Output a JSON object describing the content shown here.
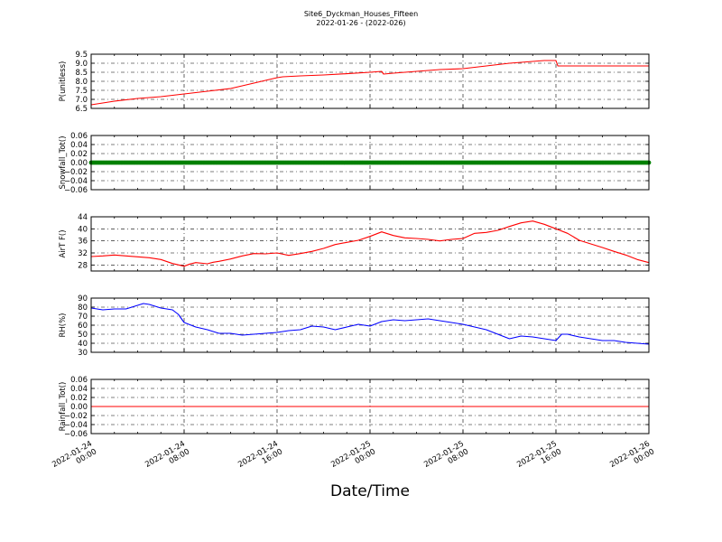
{
  "figure": {
    "title": "Site6_Dyckman_Houses_Fifteen",
    "subtitle": "2022-01-26 - (2022-026)",
    "xlabel": "Date/Time"
  },
  "chart_data": [
    {
      "type": "line",
      "ylabel": "P(unitless)",
      "ylim": [
        6.5,
        9.5
      ],
      "yticks": [
        "6.5",
        "7.0",
        "7.5",
        "8.0",
        "8.5",
        "9.0",
        "9.5"
      ],
      "xlim": [
        "2022-01-24 00:00",
        "2022-01-26 00:00"
      ],
      "grid": true,
      "series": [
        {
          "color": "#ff0000",
          "x": [
            "2022-01-24 00:00",
            "2022-01-24 02:00",
            "2022-01-24 04:00",
            "2022-01-24 06:00",
            "2022-01-24 08:00",
            "2022-01-24 10:00",
            "2022-01-24 12:00",
            "2022-01-24 13:00",
            "2022-01-24 14:00",
            "2022-01-24 15:00",
            "2022-01-24 16:00",
            "2022-01-24 16:30",
            "2022-01-24 18:00",
            "2022-01-24 20:00",
            "2022-01-24 22:00",
            "2022-01-25 00:00",
            "2022-01-25 01:00",
            "2022-01-25 01:10",
            "2022-01-25 02:00",
            "2022-01-25 04:00",
            "2022-01-25 06:00",
            "2022-01-25 08:00",
            "2022-01-25 10:00",
            "2022-01-25 12:00",
            "2022-01-25 14:00",
            "2022-01-25 15:00",
            "2022-01-25 16:00",
            "2022-01-25 16:10",
            "2022-01-25 18:00",
            "2022-01-25 20:00",
            "2022-01-25 22:00",
            "2022-01-26 00:00"
          ],
          "y": [
            6.7,
            6.9,
            7.05,
            7.15,
            7.3,
            7.45,
            7.6,
            7.75,
            7.9,
            8.05,
            8.2,
            8.25,
            8.3,
            8.35,
            8.42,
            8.5,
            8.55,
            8.4,
            8.45,
            8.55,
            8.65,
            8.7,
            8.85,
            9.0,
            9.1,
            9.15,
            9.15,
            8.85,
            8.85,
            8.85,
            8.85,
            8.85
          ]
        }
      ]
    },
    {
      "type": "scatter",
      "ylabel": "Snowfall_Tot()",
      "ylim": [
        -0.06,
        0.06
      ],
      "yticks": [
        "−0.06",
        "−0.04",
        "−0.02",
        "0.00",
        "0.02",
        "0.04",
        "0.06"
      ],
      "xlim": [
        "2022-01-24 00:00",
        "2022-01-26 00:00"
      ],
      "grid": true,
      "series": [
        {
          "color": "#008000",
          "x": [
            "2022-01-24 00:00",
            "2022-01-26 00:00"
          ],
          "y": [
            0.0,
            0.0
          ]
        }
      ]
    },
    {
      "type": "line",
      "ylabel": "AirT F()",
      "ylim": [
        26,
        44
      ],
      "yticks": [
        "28",
        "32",
        "36",
        "40",
        "44"
      ],
      "xlim": [
        "2022-01-24 00:00",
        "2022-01-26 00:00"
      ],
      "grid": true,
      "series": [
        {
          "color": "#ff0000",
          "x": [
            "2022-01-24 00:00",
            "2022-01-24 01:00",
            "2022-01-24 02:00",
            "2022-01-24 03:00",
            "2022-01-24 04:00",
            "2022-01-24 05:00",
            "2022-01-24 06:00",
            "2022-01-24 07:00",
            "2022-01-24 08:00",
            "2022-01-24 08:30",
            "2022-01-24 09:00",
            "2022-01-24 10:00",
            "2022-01-24 10:30",
            "2022-01-24 11:00",
            "2022-01-24 12:00",
            "2022-01-24 13:00",
            "2022-01-24 14:00",
            "2022-01-24 15:00",
            "2022-01-24 16:00",
            "2022-01-24 17:00",
            "2022-01-24 18:00",
            "2022-01-24 19:00",
            "2022-01-24 20:00",
            "2022-01-24 21:00",
            "2022-01-24 22:00",
            "2022-01-24 23:00",
            "2022-01-25 00:00",
            "2022-01-25 01:00",
            "2022-01-25 02:00",
            "2022-01-25 03:00",
            "2022-01-25 04:00",
            "2022-01-25 05:00",
            "2022-01-25 06:00",
            "2022-01-25 07:00",
            "2022-01-25 08:00",
            "2022-01-25 09:00",
            "2022-01-25 10:00",
            "2022-01-25 11:00",
            "2022-01-25 12:00",
            "2022-01-25 13:00",
            "2022-01-25 14:00",
            "2022-01-25 15:00",
            "2022-01-25 16:00",
            "2022-01-25 17:00",
            "2022-01-25 18:00",
            "2022-01-25 19:00",
            "2022-01-25 20:00",
            "2022-01-25 21:00",
            "2022-01-25 22:00",
            "2022-01-25 23:00",
            "2022-01-26 00:00"
          ],
          "y": [
            30.8,
            31.0,
            31.3,
            31.0,
            30.7,
            30.4,
            29.8,
            28.5,
            27.6,
            28.3,
            28.8,
            28.4,
            28.9,
            29.2,
            30.0,
            31.0,
            31.8,
            31.7,
            32.0,
            31.2,
            31.8,
            32.5,
            33.5,
            34.8,
            35.5,
            36.2,
            37.5,
            39.0,
            37.8,
            37.0,
            36.8,
            36.5,
            36.0,
            36.5,
            36.8,
            38.5,
            38.8,
            39.5,
            40.8,
            42.0,
            42.6,
            41.5,
            40.0,
            38.5,
            36.2,
            35.0,
            33.8,
            32.5,
            31.3,
            29.8,
            28.8
          ]
        }
      ]
    },
    {
      "type": "line",
      "ylabel": "RH(%)",
      "ylim": [
        30,
        90
      ],
      "yticks": [
        "30",
        "40",
        "50",
        "60",
        "70",
        "80",
        "90"
      ],
      "xlim": [
        "2022-01-24 00:00",
        "2022-01-26 00:00"
      ],
      "grid": true,
      "series": [
        {
          "color": "#0000ff",
          "x": [
            "2022-01-24 00:00",
            "2022-01-24 01:00",
            "2022-01-24 02:00",
            "2022-01-24 03:00",
            "2022-01-24 04:00",
            "2022-01-24 04:30",
            "2022-01-24 05:00",
            "2022-01-24 06:00",
            "2022-01-24 07:00",
            "2022-01-24 07:30",
            "2022-01-24 08:00",
            "2022-01-24 09:00",
            "2022-01-24 10:00",
            "2022-01-24 11:00",
            "2022-01-24 12:00",
            "2022-01-24 13:00",
            "2022-01-24 14:00",
            "2022-01-24 15:00",
            "2022-01-24 16:00",
            "2022-01-24 17:00",
            "2022-01-24 18:00",
            "2022-01-24 19:00",
            "2022-01-24 20:00",
            "2022-01-24 21:00",
            "2022-01-24 22:00",
            "2022-01-24 23:00",
            "2022-01-25 00:00",
            "2022-01-25 01:00",
            "2022-01-25 02:00",
            "2022-01-25 03:00",
            "2022-01-25 04:00",
            "2022-01-25 05:00",
            "2022-01-25 06:00",
            "2022-01-25 07:00",
            "2022-01-25 08:00",
            "2022-01-25 09:00",
            "2022-01-25 10:00",
            "2022-01-25 11:00",
            "2022-01-25 12:00",
            "2022-01-25 13:00",
            "2022-01-25 14:00",
            "2022-01-25 15:00",
            "2022-01-25 16:00",
            "2022-01-25 16:30",
            "2022-01-25 17:00",
            "2022-01-25 18:00",
            "2022-01-25 19:00",
            "2022-01-25 20:00",
            "2022-01-25 21:00",
            "2022-01-25 22:00",
            "2022-01-25 23:00",
            "2022-01-26 00:00"
          ],
          "y": [
            79,
            77,
            78,
            78,
            82,
            84,
            83,
            79,
            77,
            72,
            63,
            58,
            55,
            51,
            51,
            49,
            50,
            51,
            52,
            54,
            55,
            59,
            58,
            55,
            58,
            61,
            59,
            64,
            66,
            65,
            66,
            67,
            65,
            63,
            61,
            58,
            55,
            50,
            45,
            48,
            47,
            45,
            43,
            50,
            50,
            47,
            45,
            43,
            43,
            41,
            40,
            39
          ]
        }
      ]
    },
    {
      "type": "line",
      "ylabel": "Rainfall_Tot()",
      "ylim": [
        -0.06,
        0.06
      ],
      "yticks": [
        "−0.06",
        "−0.04",
        "−0.02",
        "0.00",
        "0.02",
        "0.04",
        "0.06"
      ],
      "xlim": [
        "2022-01-24 00:00",
        "2022-01-26 00:00"
      ],
      "grid": true,
      "series": [
        {
          "color": "#ff0000",
          "x": [
            "2022-01-24 00:00",
            "2022-01-26 00:00"
          ],
          "y": [
            0.0,
            0.0
          ]
        }
      ]
    }
  ],
  "xticks": [
    {
      "x": "2022-01-24 00:00",
      "line1": "2022-01-24",
      "line2": "00:00"
    },
    {
      "x": "2022-01-24 08:00",
      "line1": "2022-01-24",
      "line2": "08:00"
    },
    {
      "x": "2022-01-24 16:00",
      "line1": "2022-01-24",
      "line2": "16:00"
    },
    {
      "x": "2022-01-25 00:00",
      "line1": "2022-01-25",
      "line2": "00:00"
    },
    {
      "x": "2022-01-25 08:00",
      "line1": "2022-01-25",
      "line2": "08:00"
    },
    {
      "x": "2022-01-25 16:00",
      "line1": "2022-01-25",
      "line2": "16:00"
    },
    {
      "x": "2022-01-26 00:00",
      "line1": "2022-01-26",
      "line2": "00:00"
    }
  ]
}
